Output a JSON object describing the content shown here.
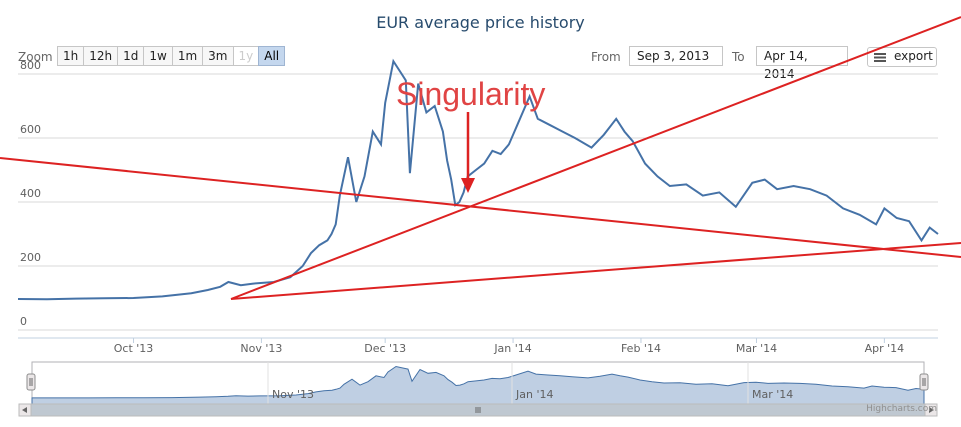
{
  "chart_title": "EUR average price history",
  "zoom": {
    "label": "Zoom",
    "buttons": [
      {
        "label": "1h",
        "state": "normal"
      },
      {
        "label": "12h",
        "state": "normal"
      },
      {
        "label": "1d",
        "state": "normal"
      },
      {
        "label": "1w",
        "state": "normal"
      },
      {
        "label": "1m",
        "state": "normal"
      },
      {
        "label": "3m",
        "state": "normal"
      },
      {
        "label": "1y",
        "state": "disabled"
      },
      {
        "label": "All",
        "state": "selected"
      }
    ]
  },
  "range": {
    "from_label": "From",
    "from_value": "Sep 3, 2013",
    "to_label": "To",
    "to_value": "Apr 14, 2014"
  },
  "export_label": "export",
  "credits": "Highcharts.com",
  "colors": {
    "series": "#4572a7",
    "annotation": "#dd2222",
    "navigator_fill": "#a9bfd9"
  },
  "chart_data": {
    "type": "line",
    "title": "EUR average price history",
    "x_start": "2013-09-03",
    "x_end": "2014-04-14",
    "ylim": [
      0,
      900
    ],
    "y_ticks": [
      0,
      200,
      400,
      600,
      800
    ],
    "x_ticks": [
      "Oct '13",
      "Nov '13",
      "Dec '13",
      "Jan '14",
      "Feb '14",
      "Mar '14",
      "Apr '14"
    ],
    "grid": true,
    "series": [
      {
        "x": [
          "2013-09-03",
          "2013-09-10",
          "2013-09-17",
          "2013-09-24",
          "2013-10-01",
          "2013-10-08",
          "2013-10-15",
          "2013-10-19",
          "2013-10-22",
          "2013-10-24",
          "2013-10-27",
          "2013-10-30",
          "2013-11-04",
          "2013-11-08",
          "2013-11-11",
          "2013-11-13",
          "2013-11-15",
          "2013-11-17",
          "2013-11-18",
          "2013-11-19",
          "2013-11-20",
          "2013-11-22",
          "2013-11-24",
          "2013-11-26",
          "2013-11-28",
          "2013-11-30",
          "2013-12-01",
          "2013-12-03",
          "2013-12-05",
          "2013-12-06",
          "2013-12-07",
          "2013-12-09",
          "2013-12-11",
          "2013-12-13",
          "2013-12-15",
          "2013-12-16",
          "2013-12-17",
          "2013-12-18",
          "2013-12-19",
          "2013-12-20",
          "2013-12-21",
          "2013-12-23",
          "2013-12-25",
          "2013-12-27",
          "2013-12-29",
          "2013-12-31",
          "2014-01-02",
          "2014-01-05",
          "2014-01-07",
          "2014-01-10",
          "2014-01-13",
          "2014-01-16",
          "2014-01-20",
          "2014-01-23",
          "2014-01-26",
          "2014-01-28",
          "2014-01-30",
          "2014-02-02",
          "2014-02-05",
          "2014-02-08",
          "2014-02-12",
          "2014-02-16",
          "2014-02-20",
          "2014-02-24",
          "2014-02-28",
          "2014-03-03",
          "2014-03-06",
          "2014-03-10",
          "2014-03-14",
          "2014-03-18",
          "2014-03-22",
          "2014-03-26",
          "2014-03-30",
          "2014-04-01",
          "2014-04-04",
          "2014-04-07",
          "2014-04-10",
          "2014-04-12",
          "2014-04-14"
        ],
        "values": [
          97,
          96,
          98,
          99,
          100,
          105,
          115,
          125,
          135,
          150,
          140,
          145,
          150,
          165,
          200,
          240,
          265,
          280,
          300,
          330,
          420,
          540,
          400,
          480,
          620,
          580,
          710,
          840,
          800,
          780,
          490,
          770,
          680,
          700,
          620,
          530,
          470,
          390,
          400,
          430,
          480,
          500,
          520,
          560,
          550,
          580,
          640,
          730,
          660,
          640,
          620,
          600,
          570,
          610,
          660,
          620,
          590,
          520,
          480,
          450,
          455,
          420,
          430,
          385,
          460,
          470,
          440,
          450,
          440,
          420,
          380,
          360,
          330,
          380,
          350,
          340,
          280,
          320,
          300
        ]
      }
    ],
    "navigator": {
      "x_ticks": [
        "Nov '13",
        "Jan '14",
        "Mar '14"
      ]
    },
    "annotations": {
      "text": "Singularity"
    }
  }
}
